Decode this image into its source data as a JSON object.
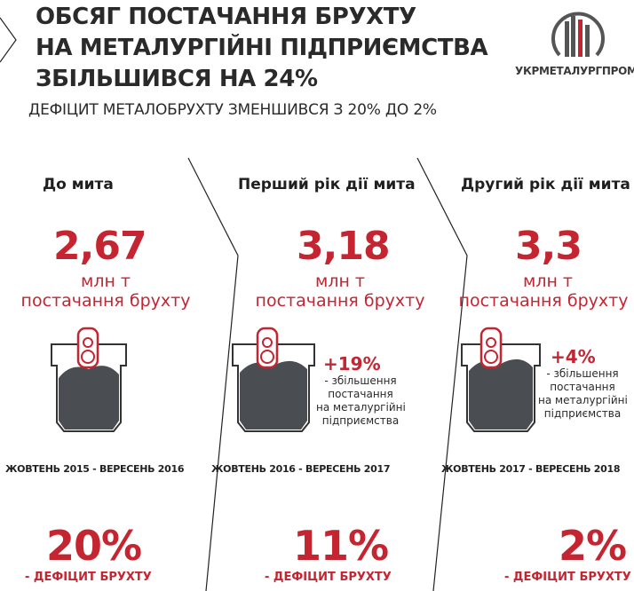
{
  "title_lines": [
    "ОБСЯГ ПОСТАЧАННЯ БРУХТУ",
    "НА МЕТАЛУРГІЙНІ ПІДПРИЄМСТВА",
    "ЗБІЛЬШИВСЯ НА 24%"
  ],
  "subtitle": "ДЕФІЦИТ МЕТАЛОБРУХТУ ЗМЕНШИВСЯ З 20% ДО 2%",
  "logo": {
    "text": "УКРМЕТАЛУРГПРОМ",
    "icon": "ukrmetalurgprom-logo"
  },
  "colors": {
    "accent": "#c42531",
    "dark": "#2a2a2a",
    "scrap": "#4a4d52"
  },
  "unit_line1": "млн т",
  "unit_line2": "постачання брухту",
  "deficit_label": "- ДЕФІЦИТ БРУХТУ",
  "columns": [
    {
      "heading": "До мита",
      "value": "2,67",
      "period": "ЖОВТЕНЬ 2015 - ВЕРЕСЕНЬ 2016",
      "deficit_pct": "20%",
      "fill_level": 0.55
    },
    {
      "heading": "Перший рік дії мита",
      "value": "3,18",
      "change": "+19%",
      "change_desc": [
        "- збільшення",
        "постачання",
        "на металургійні",
        "підприємства"
      ],
      "period": "ЖОВТЕНЬ 2016 - ВЕРЕСЕНЬ 2017",
      "deficit_pct": "11%",
      "fill_level": 0.65
    },
    {
      "heading": "Другий рік дії мита",
      "value": "3,3",
      "change": "+4%",
      "change_desc": [
        "- збільшення",
        "постачання",
        "на металургійні",
        "підприємства"
      ],
      "period": "ЖОВТЕНЬ 2017 - ВЕРЕСЕНЬ 2018",
      "deficit_pct": "2%",
      "fill_level": 0.68
    }
  ]
}
